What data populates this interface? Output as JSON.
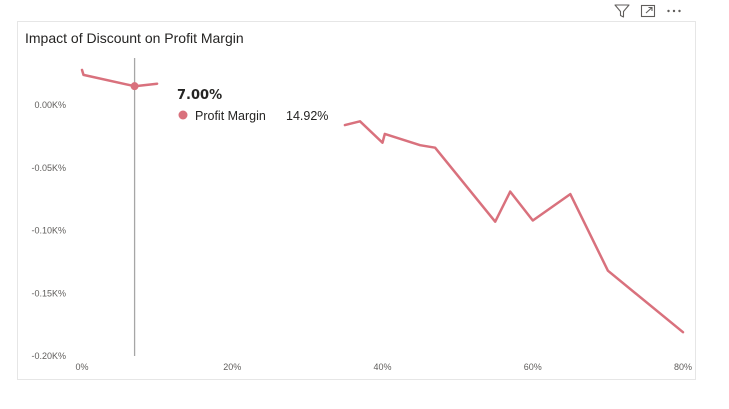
{
  "toolbar": {
    "filter_icon": "filter-icon",
    "focus_icon": "focus-mode-icon",
    "more_icon": "more-options-icon"
  },
  "colors": {
    "series": "#D9717D",
    "hover_line": "#A6A6A6"
  },
  "tooltip": {
    "title": "7.00%",
    "series_name": "Profit Margin",
    "value": "14.92%"
  },
  "chart_data": {
    "type": "line",
    "title": "Impact of Discount on Profit Margin",
    "xlabel": "",
    "ylabel": "",
    "x_ticks": [
      {
        "value": 0,
        "label": "0%"
      },
      {
        "value": 20,
        "label": "20%"
      },
      {
        "value": 40,
        "label": "40%"
      },
      {
        "value": 60,
        "label": "60%"
      },
      {
        "value": 80,
        "label": "80%"
      }
    ],
    "y_ticks": [
      {
        "value": 0,
        "label": "0.00K%"
      },
      {
        "value": -0.05,
        "label": "-0.05K%"
      },
      {
        "value": -0.1,
        "label": "-0.10K%"
      },
      {
        "value": -0.15,
        "label": "-0.15K%"
      },
      {
        "value": -0.2,
        "label": "-0.20K%"
      }
    ],
    "xlim": [
      0,
      80
    ],
    "ylim": [
      -0.2,
      0.045
    ],
    "grid": false,
    "legend": "none",
    "hover_x": 7,
    "series": [
      {
        "segments": [
          [
            {
              "x": 0,
              "y": 0.028
            },
            {
              "x": 0.2,
              "y": 0.024
            },
            {
              "x": 7,
              "y": 0.015
            },
            {
              "x": 10,
              "y": 0.017
            }
          ],
          [
            {
              "x": 35,
              "y": -0.016
            },
            {
              "x": 37,
              "y": -0.013
            },
            {
              "x": 40,
              "y": -0.03
            },
            {
              "x": 40.3,
              "y": -0.023
            },
            {
              "x": 45,
              "y": -0.032
            },
            {
              "x": 47,
              "y": -0.034
            },
            {
              "x": 55,
              "y": -0.093
            },
            {
              "x": 57,
              "y": -0.069
            },
            {
              "x": 60,
              "y": -0.092
            },
            {
              "x": 65,
              "y": -0.071
            },
            {
              "x": 70,
              "y": -0.132
            },
            {
              "x": 80,
              "y": -0.181
            }
          ]
        ]
      }
    ]
  }
}
